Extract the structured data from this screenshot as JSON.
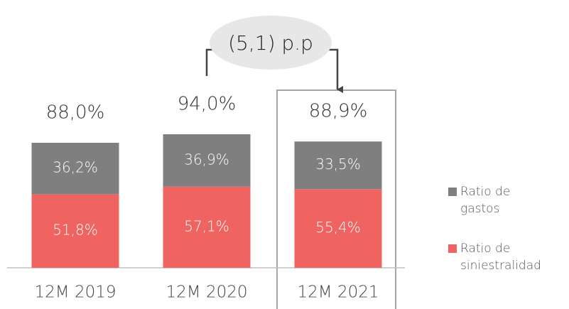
{
  "chart_data": {
    "type": "stacked-bar",
    "categories": [
      "12M 2019",
      "12M 2020",
      "12M 2021"
    ],
    "series": [
      {
        "name": "Ratio de siniestralidad",
        "color": "#ef6461",
        "values": [
          51.8,
          57.1,
          55.4
        ],
        "value_labels": [
          "51,8%",
          "57,1%",
          "55,4%"
        ]
      },
      {
        "name": "Ratio de gastos",
        "color": "#7f7f7f",
        "values": [
          36.2,
          36.9,
          33.5
        ],
        "value_labels": [
          "36,2%",
          "36,9%",
          "33,5%"
        ]
      }
    ],
    "totals": [
      88.0,
      94.0,
      88.9
    ],
    "total_labels": [
      "88,0%",
      "94,0%",
      "88,9%"
    ],
    "annotation": "(5,1) p.p"
  }
}
